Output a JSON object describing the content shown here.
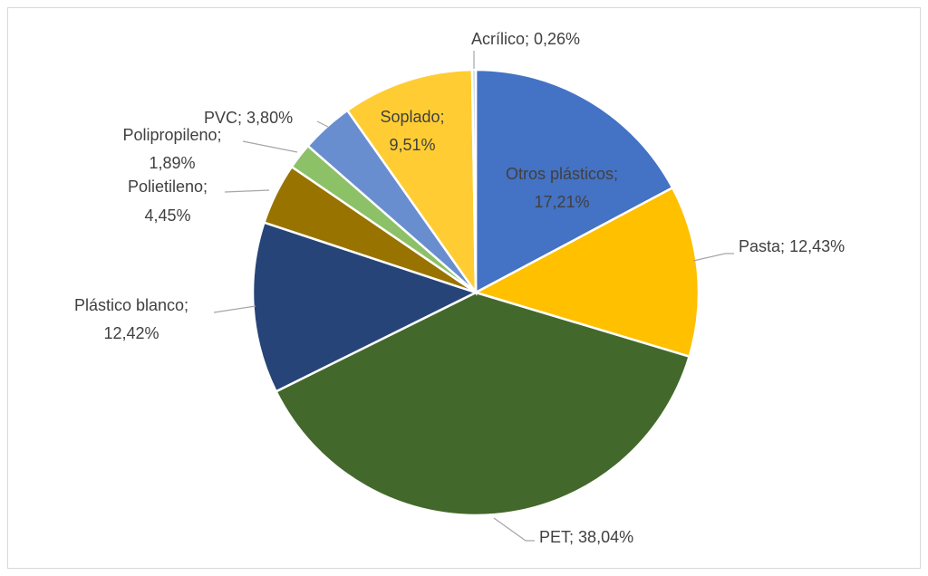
{
  "chart_data": {
    "type": "pie",
    "categories": [
      "Otros plásticos",
      "Pasta",
      "PET",
      "Plástico blanco",
      "Polietileno",
      "Polipropileno",
      "PVC",
      "Soplado",
      "Acrílico"
    ],
    "values": [
      17.21,
      12.43,
      38.04,
      12.42,
      4.45,
      1.89,
      3.8,
      9.51,
      0.26
    ],
    "value_labels": [
      "17,21%",
      "12,43%",
      "38,04%",
      "12,42%",
      "4,45%",
      "1,89%",
      "3,80%",
      "9,51%",
      "0,26%"
    ],
    "label_separator": ";",
    "colors": [
      "#4472c4",
      "#ffc000",
      "#43682b",
      "#264478",
      "#997300",
      "#8cc168",
      "#698ed0",
      "#ffcd33",
      "#c9d6ee"
    ]
  }
}
